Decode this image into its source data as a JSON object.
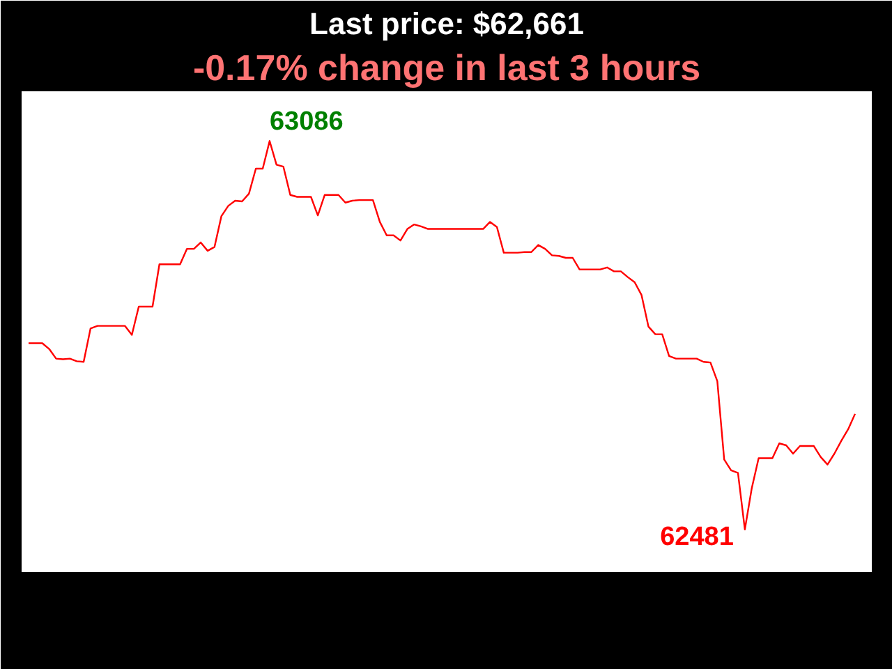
{
  "chart_data": {
    "type": "line",
    "title": "Last price: $62,661",
    "subtitle": "-0.17% change in last 3 hours",
    "categories": [
      null,
      null,
      null,
      null,
      null,
      null,
      null,
      null,
      null,
      null,
      null,
      null,
      null,
      null,
      null,
      null,
      null,
      null,
      null,
      null,
      null,
      null,
      null,
      null,
      null,
      null,
      null,
      null,
      null,
      null,
      null,
      null,
      null,
      null,
      null,
      null,
      null,
      null,
      null,
      null,
      null,
      null,
      null,
      null,
      null,
      null,
      null,
      null,
      null,
      null,
      null,
      null,
      null,
      null,
      null,
      null,
      null,
      null,
      null,
      null,
      null,
      null,
      null,
      null,
      null,
      null,
      null,
      null,
      null,
      null,
      null,
      null,
      null,
      null,
      null,
      null,
      null,
      null,
      null,
      null,
      null,
      null,
      null,
      null,
      null,
      null,
      null,
      null,
      null,
      null,
      null,
      null,
      null,
      null,
      null,
      null,
      null,
      null,
      null,
      null,
      null,
      null,
      null,
      null,
      null,
      null,
      null,
      null,
      null,
      null,
      null,
      null,
      null,
      null,
      null,
      null,
      null,
      null,
      null,
      null,
      null
    ],
    "values": [
      62771,
      62771,
      62771,
      62762,
      62747,
      62746,
      62747,
      62743,
      62742,
      62794,
      62798,
      62798,
      62798,
      62798,
      62798,
      62784,
      62828,
      62828,
      62828,
      62894,
      62894,
      62894,
      62894,
      62918,
      62918,
      62928,
      62915,
      62921,
      62969,
      62985,
      62993,
      62992,
      63004,
      63043,
      63043,
      63086,
      63049,
      63046,
      63002,
      62999,
      62999,
      62999,
      62970,
      63002,
      63002,
      63002,
      62990,
      62993,
      62994,
      62994,
      62994,
      62960,
      62939,
      62939,
      62931,
      62949,
      62956,
      62953,
      62949,
      62949,
      62949,
      62949,
      62949,
      62949,
      62949,
      62949,
      62949,
      62960,
      62952,
      62912,
      62912,
      62912,
      62913,
      62913,
      62924,
      62918,
      62908,
      62907,
      62904,
      62904,
      62886,
      62886,
      62886,
      62886,
      62889,
      62883,
      62883,
      62874,
      62866,
      62846,
      62797,
      62785,
      62785,
      62751,
      62747,
      62747,
      62747,
      62747,
      62742,
      62741,
      62712,
      62590,
      62573,
      62569,
      62481,
      62545,
      62592,
      62592,
      62592,
      62615,
      62612,
      62599,
      62611,
      62611,
      62611,
      62594,
      62582,
      62599,
      62619,
      62637,
      62661
    ],
    "value_labels": [
      null,
      null,
      null,
      null,
      null,
      null,
      null,
      null,
      null,
      null,
      null,
      null,
      null,
      null,
      null,
      null,
      null,
      null,
      null,
      null,
      null,
      null,
      null,
      null,
      null,
      null,
      null,
      null,
      null,
      null,
      null,
      null,
      null,
      null,
      null,
      "63086",
      null,
      null,
      null,
      null,
      null,
      null,
      null,
      null,
      null,
      null,
      null,
      null,
      null,
      null,
      null,
      null,
      null,
      null,
      null,
      null,
      null,
      null,
      null,
      null,
      null,
      null,
      null,
      null,
      null,
      null,
      null,
      null,
      null,
      null,
      null,
      null,
      null,
      null,
      null,
      null,
      null,
      null,
      null,
      null,
      null,
      null,
      null,
      null,
      null,
      null,
      null,
      null,
      null,
      null,
      null,
      null,
      null,
      null,
      null,
      null,
      null,
      null,
      null,
      null,
      null,
      null,
      null,
      null,
      "62481",
      null,
      null,
      null,
      null,
      null,
      null,
      null,
      null,
      null,
      null,
      null,
      null,
      null,
      null,
      null,
      null
    ],
    "color": "#ff0000",
    "grid": false,
    "tick_labels": false
  }
}
